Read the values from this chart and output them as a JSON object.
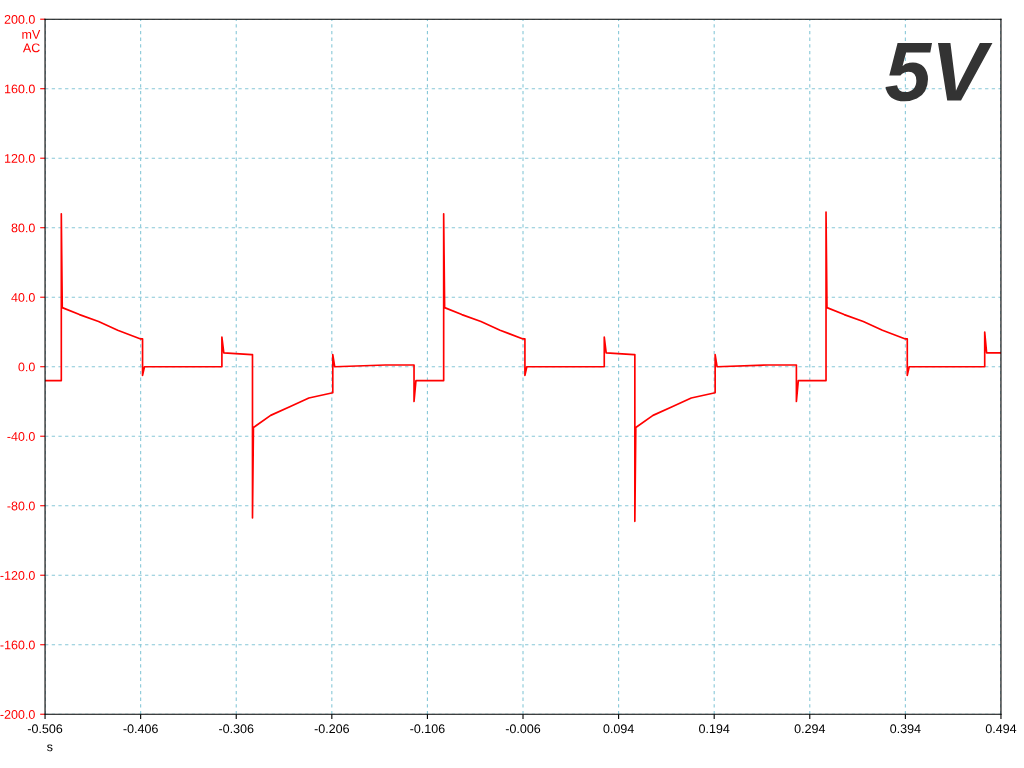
{
  "chart_data": {
    "type": "line",
    "ylabel": "mV\nAC",
    "xlabel": "s",
    "annotations": [
      "5V"
    ],
    "xlim": [
      -0.506,
      0.494
    ],
    "xticks": [
      {
        "value": -0.506,
        "label": "-0.506"
      },
      {
        "value": -0.406,
        "label": "-0.406"
      },
      {
        "value": -0.306,
        "label": "-0.306"
      },
      {
        "value": -0.206,
        "label": "-0.206"
      },
      {
        "value": -0.106,
        "label": "-0.106"
      },
      {
        "value": -0.006,
        "label": "-0.006"
      },
      {
        "value": 0.094,
        "label": "0.094"
      },
      {
        "value": 0.194,
        "label": "0.194"
      },
      {
        "value": 0.294,
        "label": "0.294"
      },
      {
        "value": 0.394,
        "label": "0.394"
      },
      {
        "value": 0.494,
        "label": "0.494"
      }
    ],
    "ylim": [
      -200,
      200
    ],
    "yticks": [
      {
        "value": -200,
        "label": "-200.0"
      },
      {
        "value": -160,
        "label": "-160.0"
      },
      {
        "value": -120,
        "label": "-120.0"
      },
      {
        "value": -80,
        "label": "-80.0"
      },
      {
        "value": -40,
        "label": "-40.0"
      },
      {
        "value": 0,
        "label": "0.0"
      },
      {
        "value": 40,
        "label": "40.0"
      },
      {
        "value": 80,
        "label": "80.0"
      },
      {
        "value": 120,
        "label": "120.0"
      },
      {
        "value": 160,
        "label": "160.0"
      },
      {
        "value": 200,
        "label": "200.0"
      }
    ],
    "grid": true,
    "legend": false,
    "series": [
      {
        "color": "#ff0000",
        "x": [
          -0.506,
          -0.489,
          -0.489,
          -0.488,
          -0.47,
          -0.45,
          -0.43,
          -0.406,
          -0.404,
          -0.404,
          -0.402,
          -0.35,
          -0.321,
          -0.321,
          -0.319,
          -0.29,
          -0.289,
          -0.289,
          -0.288,
          -0.27,
          -0.25,
          -0.23,
          -0.205,
          -0.205,
          -0.203,
          -0.15,
          -0.12,
          -0.12,
          -0.118,
          -0.089,
          -0.089,
          -0.088,
          -0.07,
          -0.05,
          -0.03,
          -0.006,
          -0.004,
          -0.004,
          -0.002,
          0.05,
          0.079,
          0.079,
          0.081,
          0.11,
          0.111,
          0.111,
          0.112,
          0.13,
          0.15,
          0.17,
          0.195,
          0.195,
          0.197,
          0.25,
          0.28,
          0.28,
          0.282,
          0.311,
          0.311,
          0.312,
          0.33,
          0.35,
          0.37,
          0.394,
          0.396,
          0.396,
          0.398,
          0.45,
          0.477,
          0.477,
          0.479,
          0.494
        ],
        "values": [
          -8,
          -8,
          88,
          34,
          30,
          26,
          21,
          16,
          16,
          -5,
          0,
          0,
          0,
          17,
          8,
          7,
          7,
          -87,
          -35,
          -28,
          -23,
          -18,
          -15,
          7,
          0,
          1,
          1,
          -20,
          -8,
          -8,
          88,
          34,
          30,
          26,
          21,
          16,
          16,
          -5,
          0,
          0,
          0,
          17,
          8,
          7,
          7,
          -89,
          -35,
          -28,
          -23,
          -18,
          -15,
          7,
          0,
          1,
          1,
          -20,
          -8,
          -8,
          89,
          34,
          30,
          26,
          21,
          16,
          16,
          -5,
          0,
          0,
          0,
          20,
          8,
          8
        ]
      }
    ]
  }
}
